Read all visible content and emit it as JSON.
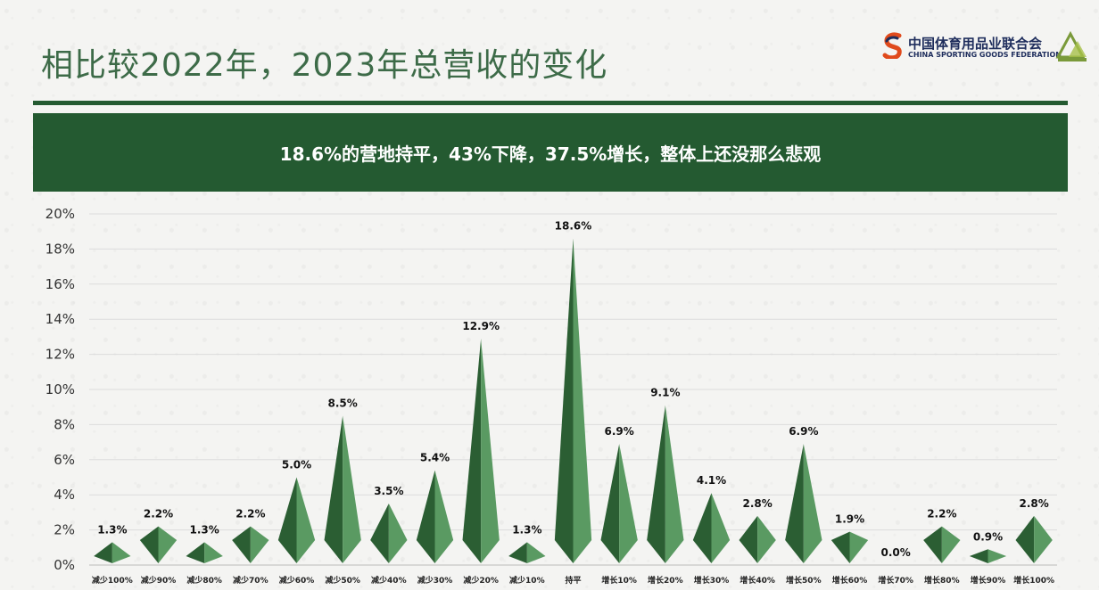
{
  "title": "相比较2022年，2023年总营收的变化",
  "banner": "18.6%的营地持平，43%下降，37.5%增长，整体上还没那么悲观",
  "logo": {
    "zh": "中国体育用品业联合会",
    "en": "CHINA SPORTING GOODS FEDERATION"
  },
  "colors": {
    "accent": "#245a31",
    "mark_dark": "#2b5e33",
    "mark_light": "#5a9a62",
    "title": "#3d6b48"
  },
  "chart_data": {
    "type": "bar",
    "categories": [
      "减少100%",
      "减少90%",
      "减少80%",
      "减少70%",
      "减少60%",
      "减少50%",
      "减少40%",
      "减少30%",
      "减少20%",
      "减少10%",
      "持平",
      "增长10%",
      "增长20%",
      "增长30%",
      "增长40%",
      "增长50%",
      "增长60%",
      "增长70%",
      "增长80%",
      "增长90%",
      "增长100%"
    ],
    "values": [
      1.3,
      2.2,
      1.3,
      2.2,
      5.0,
      8.5,
      3.5,
      5.4,
      12.9,
      1.3,
      18.6,
      6.9,
      9.1,
      4.1,
      2.8,
      6.9,
      1.9,
      0.0,
      2.2,
      0.9,
      2.8
    ],
    "value_labels": [
      "1.3%",
      "2.2%",
      "1.3%",
      "2.2%",
      "5.0%",
      "8.5%",
      "3.5%",
      "5.4%",
      "12.9%",
      "1.3%",
      "18.6%",
      "6.9%",
      "9.1%",
      "4.1%",
      "2.8%",
      "6.9%",
      "1.9%",
      "0.0%",
      "2.2%",
      "0.9%",
      "2.8%"
    ],
    "ylim": [
      0,
      20
    ],
    "yticks": [
      "0%",
      "2%",
      "4%",
      "6%",
      "8%",
      "10%",
      "12%",
      "14%",
      "16%",
      "18%",
      "20%"
    ],
    "grid": true,
    "mark_shape": "pyramid"
  }
}
